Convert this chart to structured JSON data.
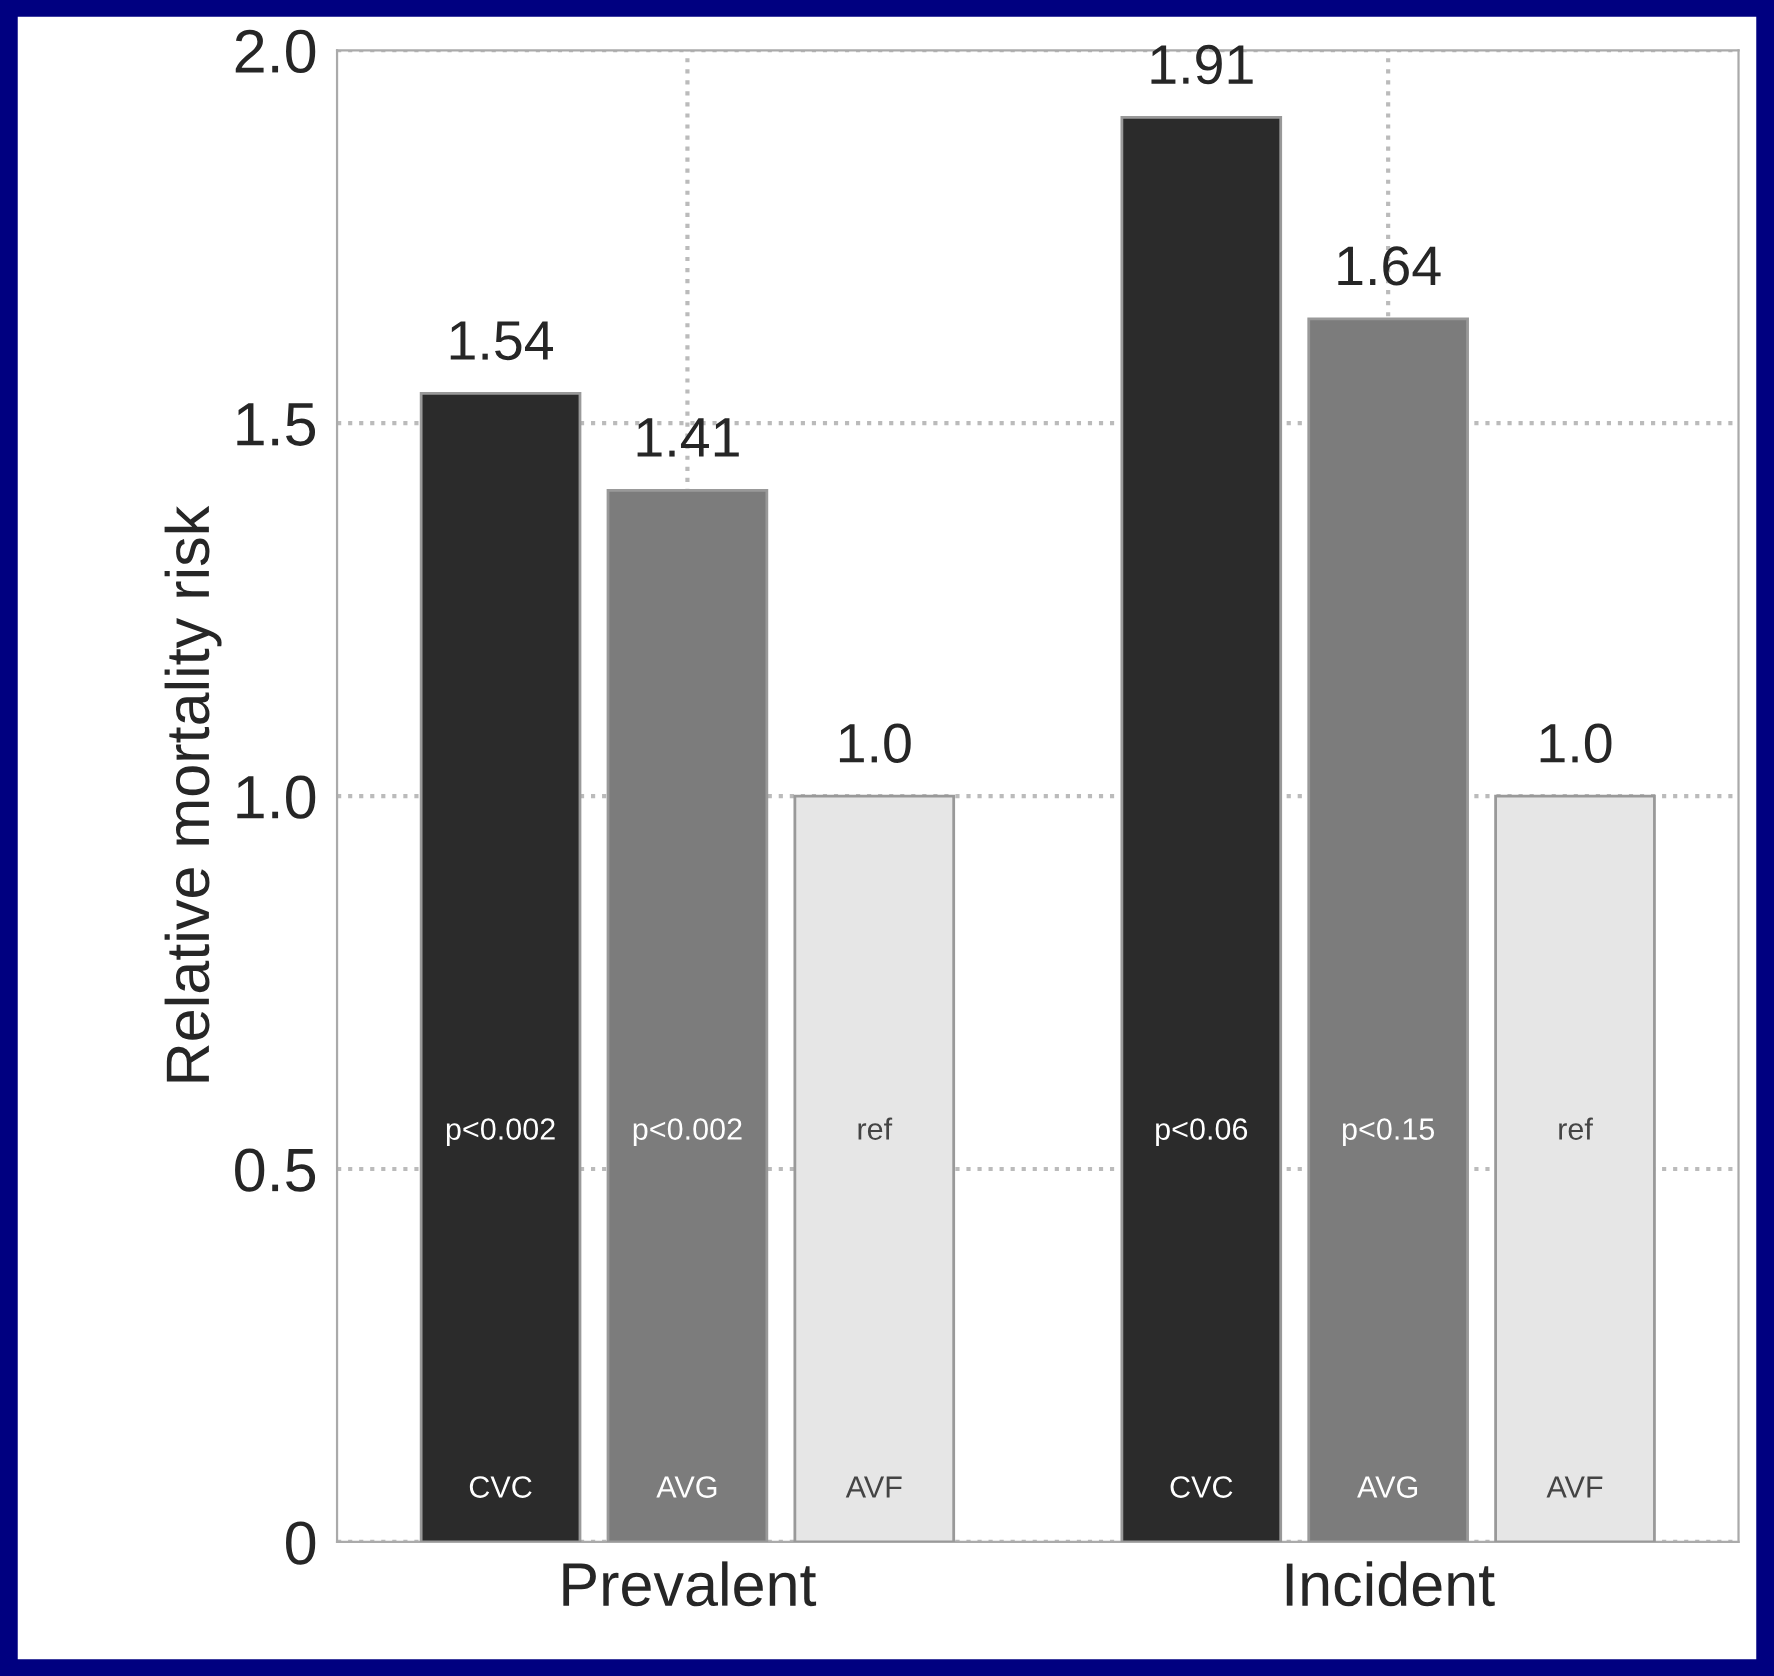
{
  "chart_data": {
    "type": "bar",
    "ylabel": "Relative mortality risk",
    "categories": [
      "Prevalent",
      "Incident"
    ],
    "series": [
      {
        "name": "CVC",
        "color": "#2b2b2b",
        "values": [
          1.54,
          1.91
        ]
      },
      {
        "name": "AVG",
        "color": "#7c7c7c",
        "values": [
          1.41,
          1.64
        ]
      },
      {
        "name": "AVF",
        "color": "#e6e6e6",
        "values": [
          1.0,
          1.0
        ]
      }
    ],
    "value_labels": [
      [
        "1.54",
        "1.91"
      ],
      [
        "1.41",
        "1.64"
      ],
      [
        "1.0",
        "1.0"
      ]
    ],
    "annotations": [
      "p<0.002",
      "p<0.002",
      "ref",
      "p<0.06",
      "p<0.15",
      "ref"
    ],
    "ylim": [
      0,
      2.0
    ],
    "yticks": [
      {
        "value": 0,
        "label": "0"
      },
      0.5,
      {
        "value": 1.0,
        "label": "1.0"
      },
      1.5,
      {
        "value": 2.0,
        "label": "2.0"
      }
    ],
    "grid": true,
    "legend": false
  }
}
